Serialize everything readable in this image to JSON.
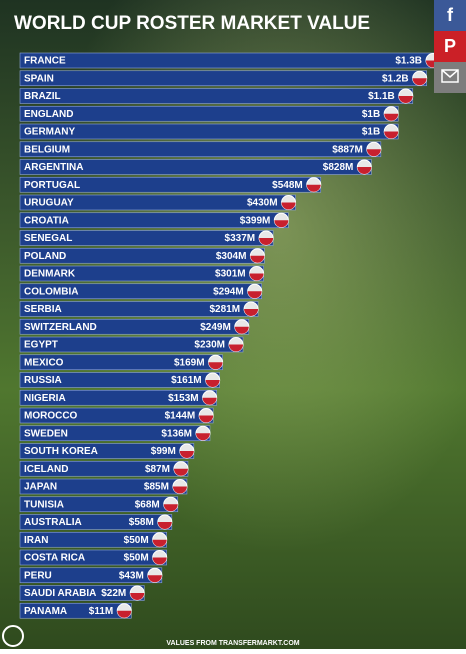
{
  "chart_data": {
    "type": "bar",
    "title": "WORLD CUP ROSTER MARKET VALUE",
    "categories": [
      "FRANCE",
      "SPAIN",
      "BRAZIL",
      "ENGLAND",
      "GERMANY",
      "BELGIUM",
      "ARGENTINA",
      "PORTUGAL",
      "URUGUAY",
      "CROATIA",
      "SENEGAL",
      "POLAND",
      "DENMARK",
      "COLOMBIA",
      "SERBIA",
      "SWITZERLAND",
      "EGYPT",
      "MEXICO",
      "RUSSIA",
      "NIGERIA",
      "MOROCCO",
      "SWEDEN",
      "SOUTH KOREA",
      "ICELAND",
      "JAPAN",
      "TUNISIA",
      "AUSTRALIA",
      "IRAN",
      "COSTA RICA",
      "PERU",
      "SAUDI ARABIA",
      "PANAMA"
    ],
    "values": [
      1300,
      1200,
      1100,
      1000,
      1000,
      887,
      828,
      548,
      430,
      399,
      337,
      304,
      301,
      294,
      281,
      249,
      230,
      169,
      161,
      153,
      144,
      136,
      99,
      87,
      85,
      68,
      58,
      50,
      50,
      43,
      22,
      11
    ],
    "value_labels": [
      "$1.3B",
      "$1.2B",
      "$1.1B",
      "$1B",
      "$1B",
      "$887M",
      "$828M",
      "$548M",
      "$430M",
      "$399M",
      "$337M",
      "$304M",
      "$301M",
      "$294M",
      "$281M",
      "$249M",
      "$230M",
      "$169M",
      "$161M",
      "$153M",
      "$144M",
      "$136M",
      "$99M",
      "$87M",
      "$85M",
      "$68M",
      "$58M",
      "$50M",
      "$50M",
      "$43M",
      "$22M",
      "$11M"
    ],
    "color": "#1d3f8c",
    "source": "VALUES FROM TRANSFERMARKT.COM"
  }
}
